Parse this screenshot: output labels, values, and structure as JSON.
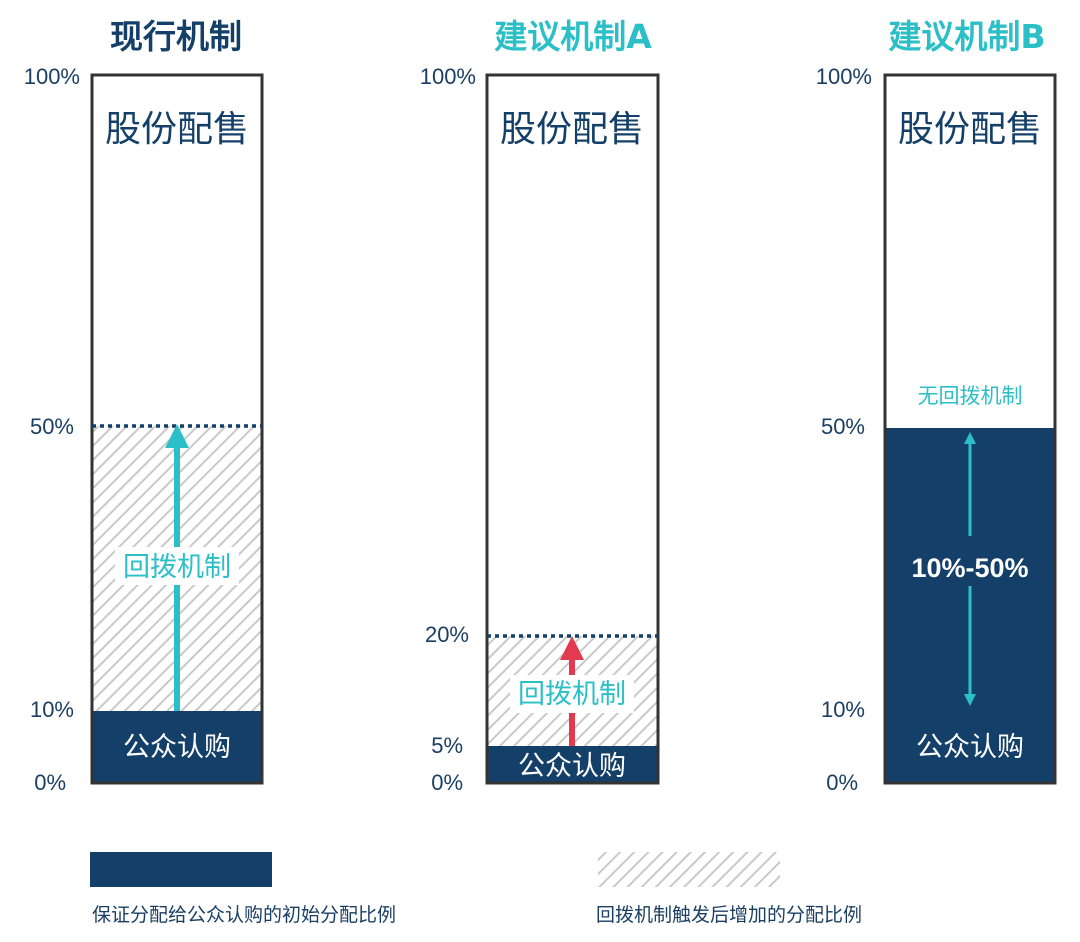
{
  "colors": {
    "navy": "#143f68",
    "teal": "#2bbfc7",
    "red": "#e23a4e",
    "hatch": "#c9c9c9",
    "axis_text": "#1b3f63",
    "border": "#333333"
  },
  "panels": [
    {
      "title": "现行机制",
      "title_color": "#143f68",
      "ticks": [
        {
          "label": "100%",
          "value": 100
        },
        {
          "label": "50%",
          "value": 50
        },
        {
          "label": "10%",
          "value": 10
        },
        {
          "label": "0%",
          "value": 0
        }
      ],
      "placement_label": "股份配售",
      "base_value": 10,
      "base_label": "公众认购",
      "clawback_top": 50,
      "clawback_label": "回拨机制",
      "arrow_color": "#2bbfc7"
    },
    {
      "title": "建议机制A",
      "title_color": "#2bbfc7",
      "ticks": [
        {
          "label": "100%",
          "value": 100
        },
        {
          "label": "20%",
          "value": 20
        },
        {
          "label": "5%",
          "value": 5
        },
        {
          "label": "0%",
          "value": 0
        }
      ],
      "placement_label": "股份配售",
      "base_value": 5,
      "base_label": "公众认购",
      "clawback_top": 20,
      "clawback_label": "回拨机制",
      "arrow_color": "#e23a4e"
    },
    {
      "title": "建议机制B",
      "title_color": "#2bbfc7",
      "ticks": [
        {
          "label": "100%",
          "value": 100
        },
        {
          "label": "50%",
          "value": 50
        },
        {
          "label": "10%",
          "value": 10
        },
        {
          "label": "0%",
          "value": 0
        }
      ],
      "placement_label": "股份配售",
      "base_value": 50,
      "base_label": "公众认购",
      "range_label": "10%-50%",
      "range_low": 10,
      "range_high": 50,
      "no_clawback_label": "无回拨机制",
      "arrow_color": "#2bbfc7"
    }
  ],
  "legend": [
    {
      "type": "solid",
      "label": "保证分配给公众认购的初始分配比例"
    },
    {
      "type": "hatch",
      "label": "回拨机制触发后增加的分配比例"
    }
  ]
}
